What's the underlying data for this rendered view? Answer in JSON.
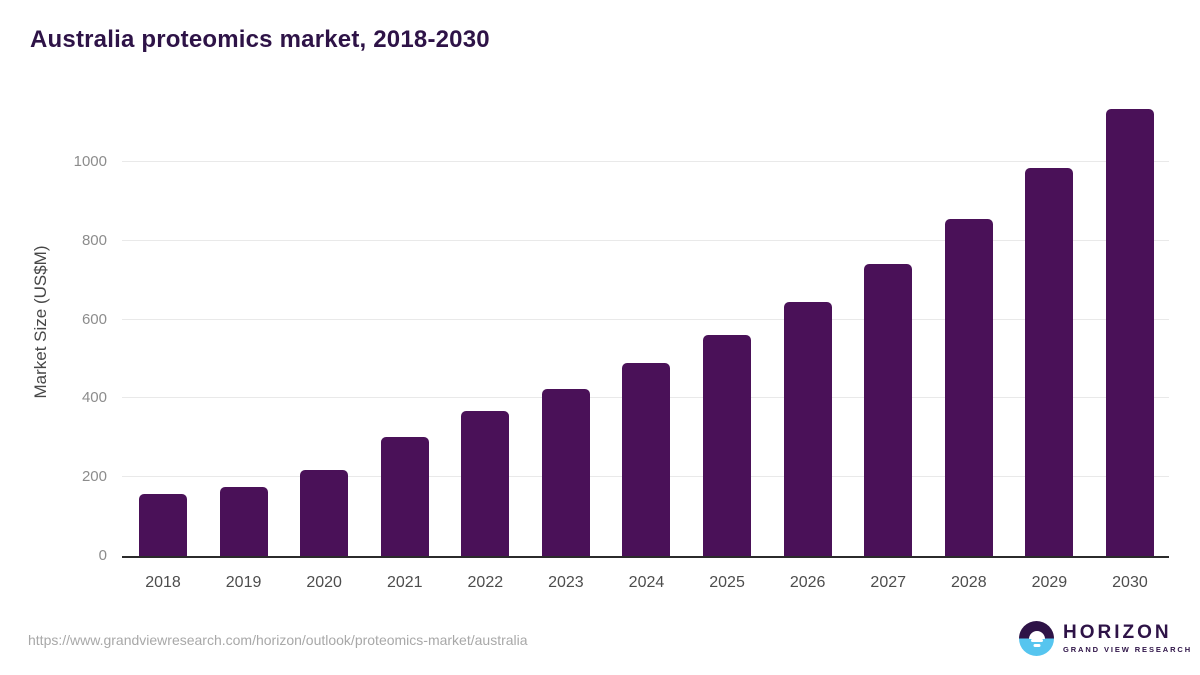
{
  "page": {
    "title": "Australia proteomics market, 2018-2030",
    "source_url": "https://www.grandviewresearch.com/horizon/outlook/proteomics-market/australia"
  },
  "logo": {
    "name": "HORIZON",
    "subtitle": "GRAND VIEW RESEARCH"
  },
  "colors": {
    "bar": "#4a1158",
    "title_text": "#2e1347",
    "axis_line": "#2b2b2b",
    "gridline": "#e9e9e9",
    "y_tick_text": "#8c8c8c",
    "x_tick_text": "#4d4d4d",
    "y_axis_title_text": "#474747",
    "url_text": "#a8a8a8",
    "logo_purple": "#2e1347",
    "logo_blue": "#56c5ef"
  },
  "chart_data": {
    "type": "bar",
    "title": "Australia proteomics market, 2018-2030",
    "categories": [
      "2018",
      "2019",
      "2020",
      "2021",
      "2022",
      "2023",
      "2024",
      "2025",
      "2026",
      "2027",
      "2028",
      "2029",
      "2030"
    ],
    "values": [
      157,
      176,
      218,
      302,
      368,
      423,
      490,
      560,
      645,
      742,
      855,
      985,
      1135
    ],
    "xlabel": "",
    "ylabel": "Market Size (US$M)",
    "ylim": [
      0,
      1160
    ],
    "yticks": [
      0,
      200,
      400,
      600,
      800,
      1000
    ],
    "grid": true,
    "legend": "none",
    "bar_color": "#4a1158"
  }
}
